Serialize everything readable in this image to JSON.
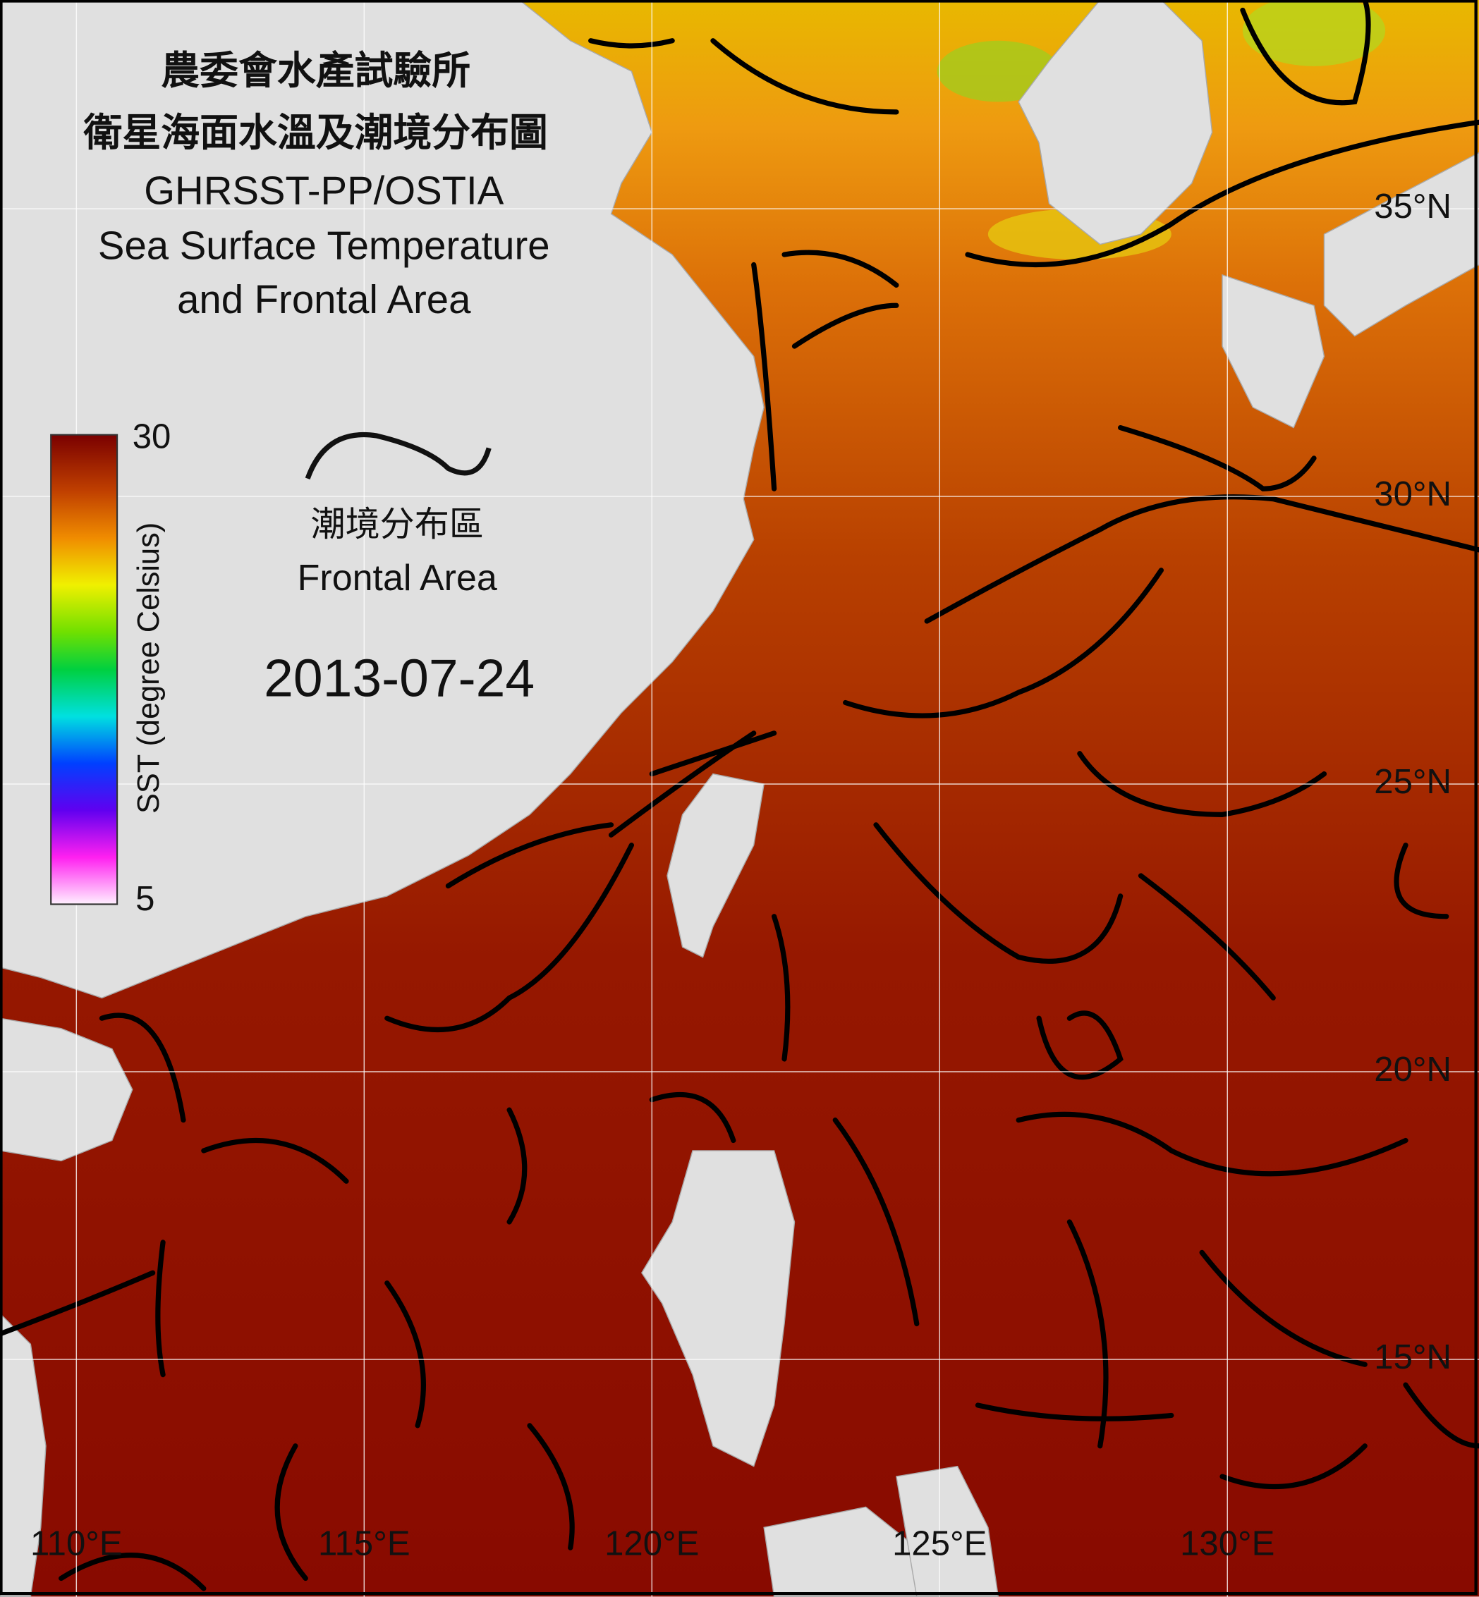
{
  "header": {
    "title_zh": [
      "農委會水產試驗所",
      "衛星海面水溫及潮境分布圖"
    ],
    "title_en": [
      "GHRSST-PP/OSTIA",
      "Sea Surface Temperature",
      "and Frontal Area"
    ]
  },
  "colorbar": {
    "label": "SST (degree Celsius)",
    "max": 30,
    "min": 5
  },
  "legend": {
    "label_zh": "潮境分布區",
    "label_en": "Frontal Area"
  },
  "date": "2013-07-24",
  "grid": {
    "lon": [
      {
        "value": 110,
        "label": "110°E"
      },
      {
        "value": 115,
        "label": "115°E"
      },
      {
        "value": 120,
        "label": "120°E"
      },
      {
        "value": 125,
        "label": "125°E"
      },
      {
        "value": 130,
        "label": "130°E"
      }
    ],
    "lat": [
      {
        "value": 35,
        "label": "35°N"
      },
      {
        "value": 30,
        "label": "30°N"
      },
      {
        "value": 25,
        "label": "25°N"
      },
      {
        "value": 20,
        "label": "20°N"
      },
      {
        "value": 15,
        "label": "15°N"
      }
    ]
  }
}
